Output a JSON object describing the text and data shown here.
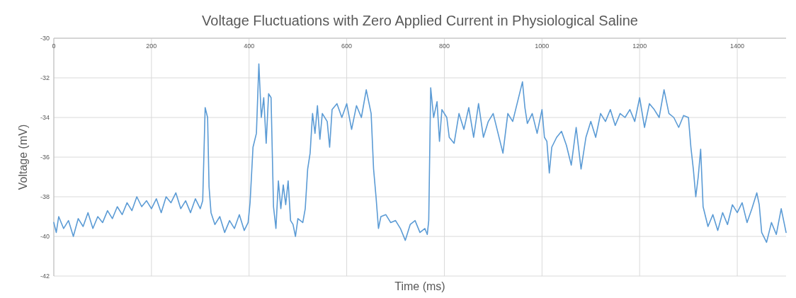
{
  "chart_data": {
    "type": "line",
    "title": "Voltage Fluctuations with Zero Applied Current in Physiological Saline",
    "xlabel": "Time (ms)",
    "ylabel": "Voltage (mV)",
    "xlim": [
      0,
      1500
    ],
    "xticks": [
      0,
      200,
      400,
      600,
      800,
      1000,
      1200,
      1400
    ],
    "ylim": [
      -42,
      -30
    ],
    "yticks": [
      -30,
      -32,
      -34,
      -36,
      -38,
      -40,
      -42
    ],
    "grid": true,
    "marker": "none",
    "line_style": "solid",
    "series": [
      {
        "color": "#5b9bd5",
        "x": [
          0,
          5,
          10,
          20,
          30,
          40,
          50,
          60,
          70,
          80,
          90,
          100,
          110,
          120,
          130,
          140,
          150,
          160,
          170,
          180,
          190,
          200,
          210,
          220,
          230,
          240,
          250,
          260,
          270,
          280,
          290,
          300,
          305,
          310,
          315,
          318,
          322,
          330,
          340,
          350,
          360,
          370,
          380,
          390,
          398,
          402,
          408,
          415,
          420,
          425,
          430,
          435,
          440,
          445,
          450,
          455,
          460,
          465,
          470,
          475,
          480,
          485,
          490,
          495,
          500,
          510,
          515,
          520,
          525,
          530,
          535,
          540,
          545,
          550,
          560,
          565,
          570,
          580,
          590,
          600,
          610,
          620,
          630,
          640,
          645,
          650,
          655,
          660,
          665,
          670,
          680,
          690,
          700,
          710,
          720,
          730,
          740,
          750,
          760,
          765,
          768,
          772,
          778,
          785,
          790,
          795,
          805,
          810,
          820,
          830,
          840,
          850,
          860,
          870,
          880,
          890,
          900,
          910,
          920,
          930,
          940,
          950,
          960,
          965,
          970,
          980,
          990,
          1000,
          1005,
          1010,
          1015,
          1020,
          1030,
          1040,
          1050,
          1060,
          1070,
          1080,
          1090,
          1100,
          1110,
          1120,
          1130,
          1140,
          1150,
          1160,
          1170,
          1180,
          1190,
          1200,
          1210,
          1220,
          1230,
          1240,
          1250,
          1260,
          1270,
          1280,
          1290,
          1300,
          1305,
          1310,
          1315,
          1320,
          1325,
          1330,
          1340,
          1350,
          1360,
          1370,
          1380,
          1390,
          1400,
          1410,
          1420,
          1430,
          1440,
          1445,
          1450,
          1460,
          1470,
          1480,
          1490,
          1500
        ],
        "values": [
          -39.3,
          -39.8,
          -39.0,
          -39.6,
          -39.2,
          -40.0,
          -39.1,
          -39.5,
          -38.8,
          -39.6,
          -39.0,
          -39.3,
          -38.7,
          -39.1,
          -38.5,
          -38.9,
          -38.3,
          -38.7,
          -38.0,
          -38.5,
          -38.2,
          -38.6,
          -38.1,
          -38.8,
          -38.0,
          -38.3,
          -37.8,
          -38.6,
          -38.2,
          -38.8,
          -38.1,
          -38.6,
          -38.2,
          -33.5,
          -34.0,
          -37.5,
          -38.8,
          -39.4,
          -39.0,
          -39.8,
          -39.2,
          -39.6,
          -38.9,
          -39.7,
          -39.3,
          -38.3,
          -35.5,
          -34.8,
          -31.3,
          -34.0,
          -33.0,
          -35.3,
          -32.8,
          -33.0,
          -38.5,
          -39.6,
          -37.2,
          -38.6,
          -37.4,
          -38.4,
          -37.2,
          -39.2,
          -39.4,
          -40.0,
          -39.1,
          -39.3,
          -38.6,
          -36.6,
          -35.8,
          -33.8,
          -34.8,
          -33.4,
          -35.1,
          -33.8,
          -34.2,
          -35.5,
          -33.6,
          -33.3,
          -34.0,
          -33.3,
          -34.6,
          -33.4,
          -34.0,
          -32.6,
          -33.2,
          -33.8,
          -36.6,
          -38.0,
          -39.6,
          -39.0,
          -38.9,
          -39.3,
          -39.2,
          -39.6,
          -40.2,
          -39.4,
          -39.2,
          -39.8,
          -39.6,
          -39.9,
          -39.2,
          -32.5,
          -34.0,
          -33.2,
          -35.2,
          -33.6,
          -34.0,
          -35.0,
          -35.3,
          -33.8,
          -34.6,
          -33.5,
          -35.0,
          -33.3,
          -35.0,
          -34.2,
          -33.8,
          -34.8,
          -35.8,
          -33.8,
          -34.2,
          -33.2,
          -32.2,
          -33.5,
          -34.3,
          -33.8,
          -34.8,
          -33.6,
          -35.0,
          -35.2,
          -36.8,
          -35.5,
          -35.0,
          -34.7,
          -35.4,
          -36.4,
          -34.5,
          -36.6,
          -35.0,
          -34.2,
          -35.0,
          -33.8,
          -34.2,
          -33.6,
          -34.4,
          -33.8,
          -34.0,
          -33.6,
          -34.2,
          -33.0,
          -34.5,
          -33.3,
          -33.6,
          -34.0,
          -32.6,
          -33.8,
          -34.0,
          -34.5,
          -33.9,
          -34.0,
          -35.5,
          -36.6,
          -38.0,
          -37.0,
          -35.6,
          -38.5,
          -39.5,
          -38.9,
          -39.7,
          -38.8,
          -39.4,
          -38.4,
          -38.8,
          -38.3,
          -39.3,
          -38.6,
          -37.8,
          -38.4,
          -39.8,
          -40.3,
          -39.3,
          -39.9,
          -38.6,
          -39.8
        ]
      }
    ]
  }
}
